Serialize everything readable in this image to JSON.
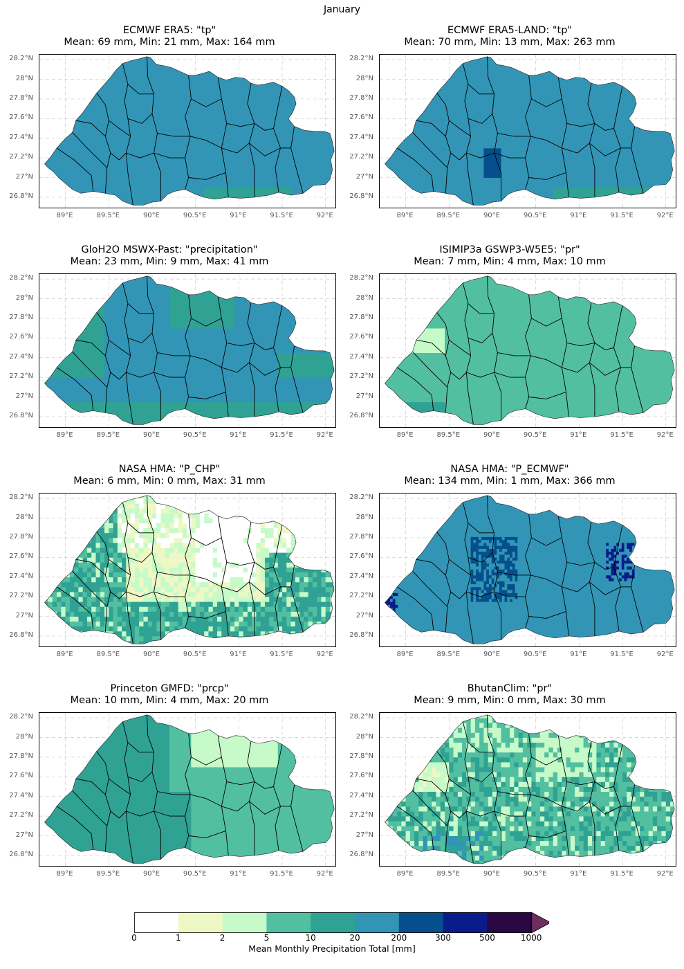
{
  "suptitle": "January",
  "colormap": {
    "bounds": [
      "0",
      "1",
      "2",
      "5",
      "10",
      "20",
      "200",
      "300",
      "500",
      "1000"
    ],
    "colors": [
      "#ffffff",
      "#edf8c4",
      "#c7fac9",
      "#52bfa0",
      "#30a294",
      "#3295b6",
      "#054f8c",
      "#0a1c8c",
      "#2a0642",
      "#6b2e5e"
    ],
    "label": "Mean Monthly Precipitation Total [mm]"
  },
  "axes": {
    "xticks": [
      "89°E",
      "89.5°E",
      "90°E",
      "90.5°E",
      "91°E",
      "91.5°E",
      "92°E"
    ],
    "yticks": [
      "28.2°N",
      "28°N",
      "27.8°N",
      "27.6°N",
      "27.4°N",
      "27.2°N",
      "27°N",
      "26.8°N"
    ]
  },
  "chart_data": [
    {
      "type": "heatmap",
      "line1": "ECMWF ERA5: \"tp\"",
      "line2": "Mean: 69 mm, Min: 21 mm, Max: 164 mm",
      "mean": 69,
      "min": 21,
      "max": 164,
      "dominant_color": "#3295b6"
    },
    {
      "type": "heatmap",
      "line1": "ECMWF ERA5-LAND: \"tp\"",
      "line2": "Mean: 70 mm, Min: 13 mm, Max: 263 mm",
      "mean": 70,
      "min": 13,
      "max": 263,
      "dominant_color": "#3295b6"
    },
    {
      "type": "heatmap",
      "line1": "GloH2O MSWX-Past: \"precipitation\"",
      "line2": "Mean: 23 mm, Min: 9 mm, Max: 41 mm",
      "mean": 23,
      "min": 9,
      "max": 41,
      "dominant_color": "#3295b6"
    },
    {
      "type": "heatmap",
      "line1": "ISIMIP3a GSWP3-W5E5: \"pr\"",
      "line2": "Mean: 7 mm, Min: 4 mm, Max: 10 mm",
      "mean": 7,
      "min": 4,
      "max": 10,
      "dominant_color": "#52bfa0"
    },
    {
      "type": "heatmap",
      "line1": "NASA HMA: \"P_CHP\"",
      "line2": "Mean: 6 mm, Min: 0 mm, Max: 31 mm",
      "mean": 6,
      "min": 0,
      "max": 31,
      "dominant_color": "#30a294"
    },
    {
      "type": "heatmap",
      "line1": "NASA HMA: \"P_ECMWF\"",
      "line2": "Mean: 134 mm, Min: 1 mm, Max: 366 mm",
      "mean": 134,
      "min": 1,
      "max": 366,
      "dominant_color": "#3295b6"
    },
    {
      "type": "heatmap",
      "line1": "Princeton GMFD: \"prcp\"",
      "line2": "Mean: 10 mm, Min: 4 mm, Max: 20 mm",
      "mean": 10,
      "min": 4,
      "max": 20,
      "dominant_color": "#30a294"
    },
    {
      "type": "heatmap",
      "line1": "BhutanClim: \"pr\"",
      "line2": "Mean: 9 mm, Min: 0 mm, Max: 30 mm",
      "mean": 9,
      "min": 0,
      "max": 30,
      "dominant_color": "#52bfa0"
    }
  ]
}
